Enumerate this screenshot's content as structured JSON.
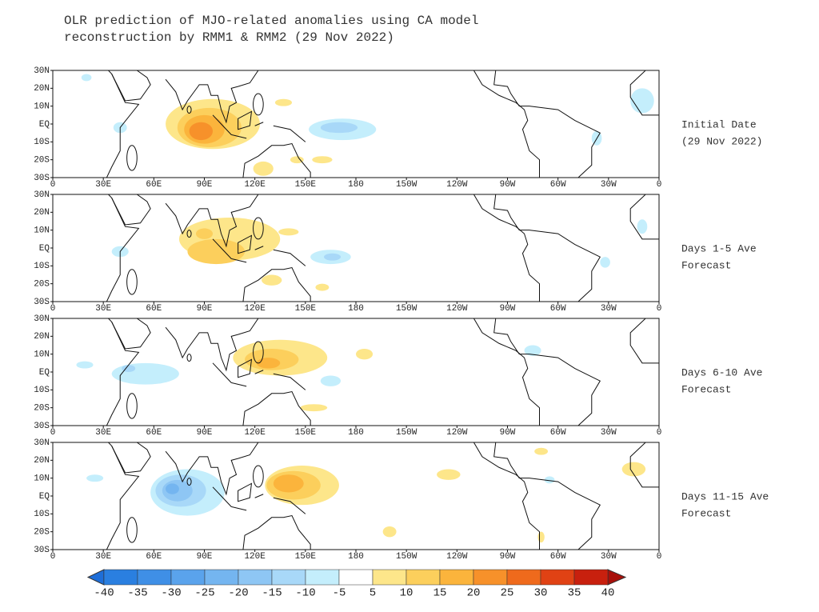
{
  "header": {
    "title_lines": [
      "OLR prediction of MJO-related anomalies using CA model",
      "reconstruction by RMM1 & RMM2 (29 Nov 2022)"
    ]
  },
  "lat_labels": [
    "30N",
    "20N",
    "10N",
    "EQ",
    "10S",
    "20S",
    "30S"
  ],
  "lon_labels": [
    "0",
    "30E",
    "60E",
    "90E",
    "120E",
    "150E",
    "180",
    "150W",
    "120W",
    "90W",
    "60W",
    "30W",
    "0"
  ],
  "panels": [
    {
      "label_lines": [
        "Initial Date",
        "(29 Nov 2022)"
      ]
    },
    {
      "label_lines": [
        "Days 1-5 Ave",
        "Forecast"
      ]
    },
    {
      "label_lines": [
        "Days 6-10 Ave",
        "Forecast"
      ]
    },
    {
      "label_lines": [
        "Days 11-15 Ave",
        "Forecast"
      ]
    }
  ],
  "colorbar": {
    "levels": [
      -40,
      -35,
      -30,
      -25,
      -20,
      -15,
      -10,
      -5,
      5,
      10,
      15,
      20,
      25,
      30,
      35,
      40
    ],
    "colors": [
      "#1e6ed8",
      "#2a7fe0",
      "#3f8fe6",
      "#5aa3ec",
      "#74b5f0",
      "#8ec6f4",
      "#a8d8f8",
      "#c4eefc",
      "#ffffff",
      "#fde68a",
      "#fccf5c",
      "#fbb43c",
      "#f7912a",
      "#ef6a1c",
      "#e04214",
      "#c8200e",
      "#a8100a"
    ]
  }
}
